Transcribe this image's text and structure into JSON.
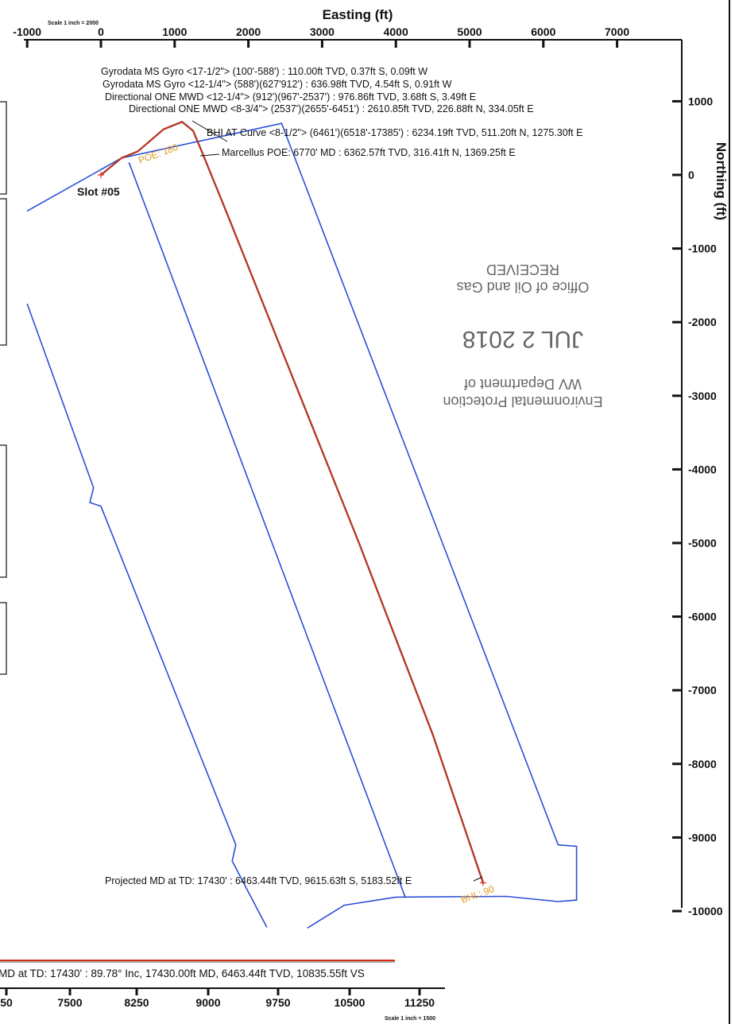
{
  "chart_data": {
    "type": "line",
    "xlabel": "Easting (ft)",
    "ylabel": "Northing (ft)",
    "scale_top": "Scale 1 inch = 2000",
    "scale_bottom": "Scale 1 inch = 1500",
    "x_ticks": [
      -1000,
      0,
      1000,
      2000,
      3000,
      4000,
      5000,
      6000,
      7000
    ],
    "y_ticks": [
      1000,
      0,
      -1000,
      -2000,
      -3000,
      -4000,
      -5000,
      -6000,
      -7000,
      -8000,
      -9000,
      -10000
    ],
    "bottom_ticks": [
      "50",
      "7500",
      "8250",
      "9000",
      "9750",
      "10500",
      "11250"
    ],
    "slot_label": "Slot #05",
    "poe_label": "POE: 180",
    "bhl_label": "BHL: 90",
    "annotations": [
      "Gyrodata MS Gyro <17-1/2\"> (100'-588') : 110.00ft TVD, 0.37ft S, 0.09ft W",
      "Gyrodata MS Gyro <12-1/4\"> (588')(627'912') : 636.98ft TVD, 4.54ft S, 0.91ft W",
      "Directional ONE MWD <12-1/4\"> (912')(967'-2537') : 976.86ft TVD, 3.68ft S, 3.49ft E",
      "Directional ONE MWD <8-3/4\"> (2537')(2655'-6451') : 2610.85ft TVD, 226.88ft N, 334.05ft E",
      "BHI AT Curve <8-1/2\"> (6461')(6518'-17385') : 6234.19ft TVD, 511.20ft N, 1275.30ft E",
      "Marcellus POE: 6770' MD : 6362.57ft TVD, 316.41ft N, 1369.25ft E"
    ],
    "projected_label": "Projected MD at TD: 17430' : 6463.44ft TVD, 9615.63ft S, 5183.52ft E",
    "bottom_label": "MD at TD: 17430' : 89.78° Inc, 17430.00ft MD, 6463.44ft TVD, 10835.55ft VS",
    "stamp": {
      "line1": "Environmental Protection",
      "line2": "WV Department of",
      "line3": "JUL  2 2018",
      "line4": "Office of Oil and Gas",
      "line5": "RECEIVED"
    },
    "wellpath": [
      {
        "x": 0,
        "y": 0
      },
      {
        "x": 280,
        "y": 230
      },
      {
        "x": 500,
        "y": 320
      },
      {
        "x": 850,
        "y": 620
      },
      {
        "x": 1100,
        "y": 720
      },
      {
        "x": 1250,
        "y": 600
      },
      {
        "x": 1369,
        "y": 316
      },
      {
        "x": 1700,
        "y": -500
      },
      {
        "x": 2500,
        "y": -2500
      },
      {
        "x": 3500,
        "y": -5000
      },
      {
        "x": 4500,
        "y": -7600
      },
      {
        "x": 5183,
        "y": -9616
      }
    ],
    "lease_boundaries": [
      [
        {
          "x": -1000,
          "y": -490
        },
        {
          "x": 280,
          "y": 230
        },
        {
          "x": 2450,
          "y": 700
        },
        {
          "x": 6200,
          "y": -9100
        },
        {
          "x": 6450,
          "y": -9120
        },
        {
          "x": 6450,
          "y": -9850
        },
        {
          "x": 6200,
          "y": -9870
        },
        {
          "x": 5500,
          "y": -9800
        },
        {
          "x": 4000,
          "y": -9810
        },
        {
          "x": 3300,
          "y": -9920
        },
        {
          "x": 2800,
          "y": -10230
        }
      ],
      [
        {
          "x": 380,
          "y": 170
        },
        {
          "x": 4130,
          "y": -9820
        }
      ],
      [
        {
          "x": -1000,
          "y": -1750
        },
        {
          "x": -100,
          "y": -4250
        },
        {
          "x": -150,
          "y": -4450
        },
        {
          "x": 0,
          "y": -4500
        },
        {
          "x": 1830,
          "y": -9100
        },
        {
          "x": 1780,
          "y": -9320
        },
        {
          "x": 2250,
          "y": -10220
        }
      ]
    ]
  }
}
